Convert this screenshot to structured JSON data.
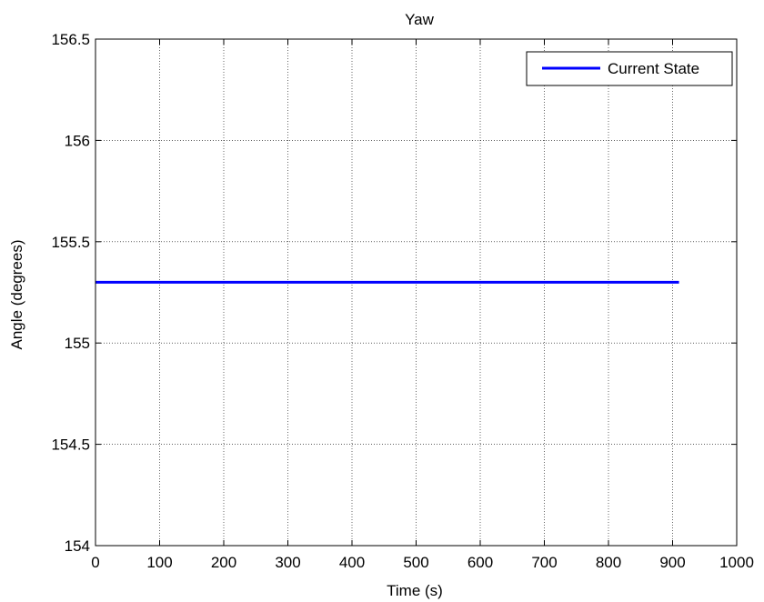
{
  "chart_data": {
    "type": "line",
    "title": "Yaw",
    "xlabel": "Time (s)",
    "ylabel": "Angle (degrees)",
    "xlim": [
      0,
      1000
    ],
    "ylim": [
      154,
      156.5
    ],
    "xticks": [
      0,
      100,
      200,
      300,
      400,
      500,
      600,
      700,
      800,
      900,
      1000
    ],
    "yticks": [
      154,
      154.5,
      155,
      155.5,
      156,
      156.5
    ],
    "ytick_labels": [
      "154",
      "154.5",
      "155",
      "155.5",
      "156",
      "156.5"
    ],
    "grid": true,
    "legend_position": "top-right",
    "series": [
      {
        "name": "Current State",
        "color": "#0000ff",
        "x": [
          0,
          910
        ],
        "y": [
          155.3,
          155.3
        ]
      }
    ]
  }
}
